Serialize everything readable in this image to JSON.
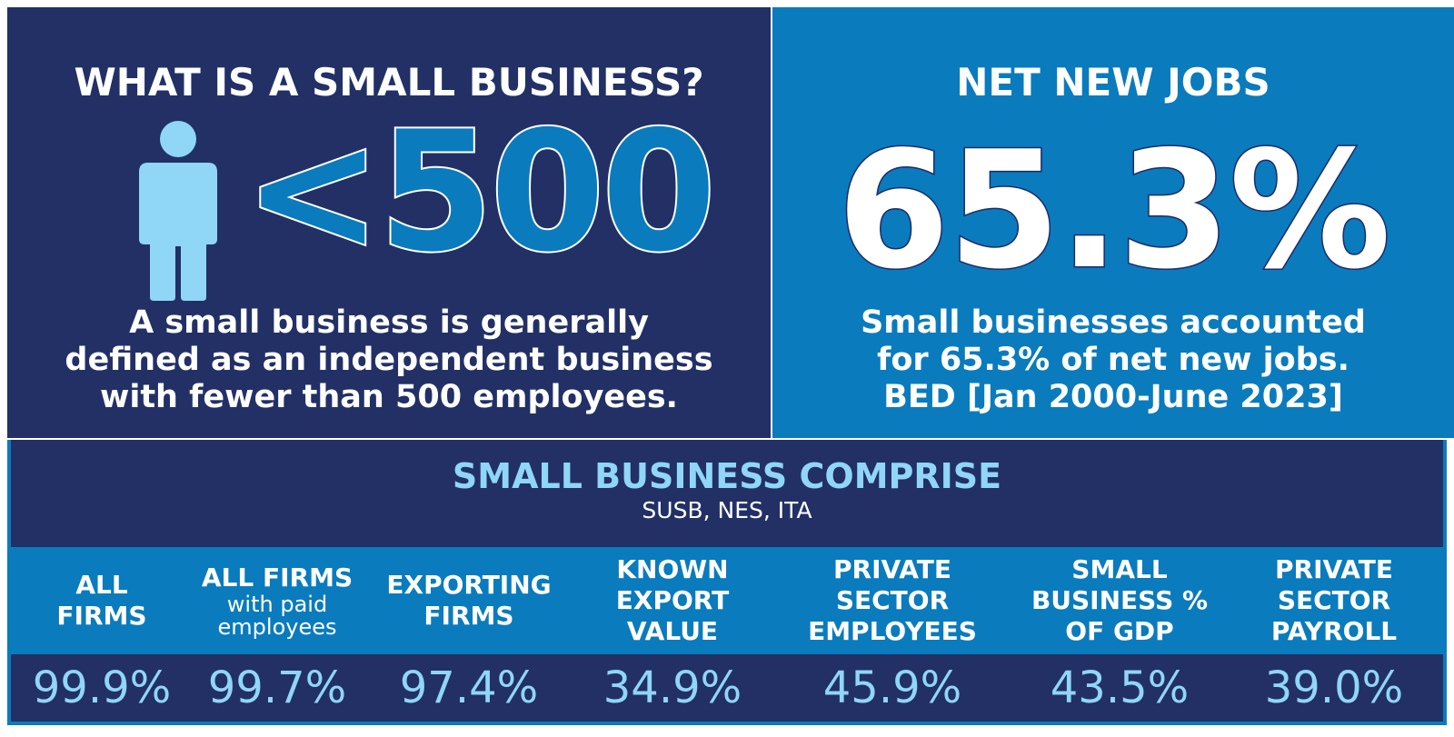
{
  "left_panel": {
    "title": "WHAT IS A SMALL BUSINESS?",
    "icon": "person-icon",
    "threshold": "<500",
    "description": "A small business is generally defined as an independent business with fewer than 500 employees."
  },
  "right_panel": {
    "title": "NET NEW JOBS",
    "value": "65.3%",
    "description_line1": "Small businesses accounted",
    "description_line2": "for 65.3% of net new jobs.",
    "description_line3": "BED [Jan 2000-June 2023]"
  },
  "comprise": {
    "title": "SMALL BUSINESS COMPRISE",
    "subtitle": "SUSB, NES, ITA",
    "columns": [
      {
        "label_line1": "ALL",
        "label_line2": "FIRMS",
        "label_line3": "",
        "sub": "",
        "value": "99.9%"
      },
      {
        "label_line1": "ALL FIRMS",
        "label_line2": "",
        "label_line3": "",
        "sub": "with paid employees",
        "value": "99.7%"
      },
      {
        "label_line1": "EXPORTING",
        "label_line2": "FIRMS",
        "label_line3": "",
        "sub": "",
        "value": "97.4%"
      },
      {
        "label_line1": "KNOWN",
        "label_line2": "EXPORT",
        "label_line3": "VALUE",
        "sub": "",
        "value": "34.9%"
      },
      {
        "label_line1": "PRIVATE",
        "label_line2": "SECTOR",
        "label_line3": "EMPLOYEES",
        "sub": "",
        "value": "45.9%"
      },
      {
        "label_line1": "SMALL",
        "label_line2": "BUSINESS %",
        "label_line3": "OF GDP",
        "sub": "",
        "value": "43.5%"
      },
      {
        "label_line1": "PRIVATE",
        "label_line2": "SECTOR",
        "label_line3": "PAYROLL",
        "sub": "",
        "value": "39.0%"
      }
    ]
  },
  "colors": {
    "navy": "#223066",
    "blue": "#0a7bbd",
    "light_blue": "#8fd6f7"
  }
}
